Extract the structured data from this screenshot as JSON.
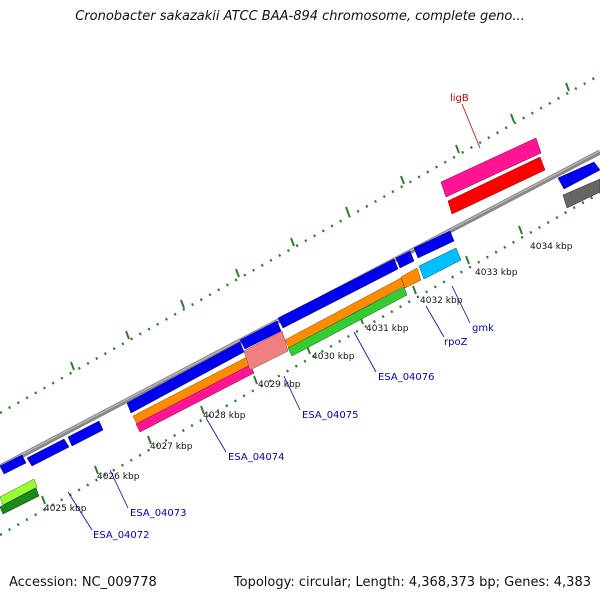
{
  "header": {
    "title": "Cronobacter sakazakii ATCC BAA-894 chromosome, complete geno..."
  },
  "footer": {
    "accession": "Accession: NC_009778",
    "summary": "Topology: circular; Length: 4,368,373 bp; Genes: 4,383"
  },
  "ticks": [
    "4025 kbp",
    "4026 kbp",
    "4027 kbp",
    "4028 kbp",
    "4029 kbp",
    "4030 kbp",
    "4031 kbp",
    "4032 kbp",
    "4033 kbp",
    "4034 kbp"
  ],
  "gene_labels": [
    {
      "name": "ESA_04072",
      "color": "#0000cc"
    },
    {
      "name": "ESA_04073",
      "color": "#0000cc"
    },
    {
      "name": "ESA_04074",
      "color": "#0000cc"
    },
    {
      "name": "ESA_04075",
      "color": "#0000cc"
    },
    {
      "name": "ESA_04076",
      "color": "#0000cc"
    },
    {
      "name": "rpoZ",
      "color": "#0000cc"
    },
    {
      "name": "gmk",
      "color": "#0000cc"
    },
    {
      "name": "ligB",
      "color": "#cc0000"
    }
  ],
  "colors": {
    "cds": "#0000ee",
    "backbone": "#888888",
    "dotted_scale": "#2e7d2e",
    "gene_ligB": "#ff1493",
    "gene_ligB_feature": "#ff0000",
    "gene_gmk": "#00bfff",
    "gene_rpoZ": "#ff8c00",
    "gene_green_track": "#33cc33",
    "gene_lightgreen": "#99ff33",
    "gene_pink": "#f08080",
    "gene_grey": "#666666"
  }
}
